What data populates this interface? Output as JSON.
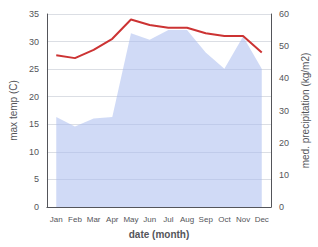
{
  "chart_data": {
    "type": "line",
    "categories": [
      "Jan",
      "Feb",
      "Mar",
      "Apr",
      "May",
      "Jun",
      "Jul",
      "Aug",
      "Sep",
      "Oct",
      "Nov",
      "Dec"
    ],
    "xlabel": "date (month)",
    "ylabel": "max temp (C)",
    "y2label": "med. precipitation (kg/m2)",
    "series": [
      {
        "type": "area",
        "color": "#aabbee",
        "axis": "y2",
        "values": [
          28.0,
          25.0,
          27.5,
          28.0,
          54.0,
          52.0,
          55.0,
          55.0,
          48.0,
          43.0,
          53.0,
          43.0
        ]
      },
      {
        "type": "line",
        "color": "#cc3333",
        "values": [
          27.5,
          27.0,
          28.5,
          30.5,
          34.0,
          33.0,
          32.5,
          32.5,
          31.5,
          31.0,
          31.0,
          28.0
        ]
      }
    ],
    "ylim": [
      0,
      35
    ],
    "yticks": [
      0,
      5,
      10,
      15,
      20,
      25,
      30,
      35
    ],
    "y2lim": [
      0,
      60
    ],
    "y2ticks": [
      0,
      10,
      20,
      30,
      40,
      50,
      60
    ],
    "grid": true
  }
}
